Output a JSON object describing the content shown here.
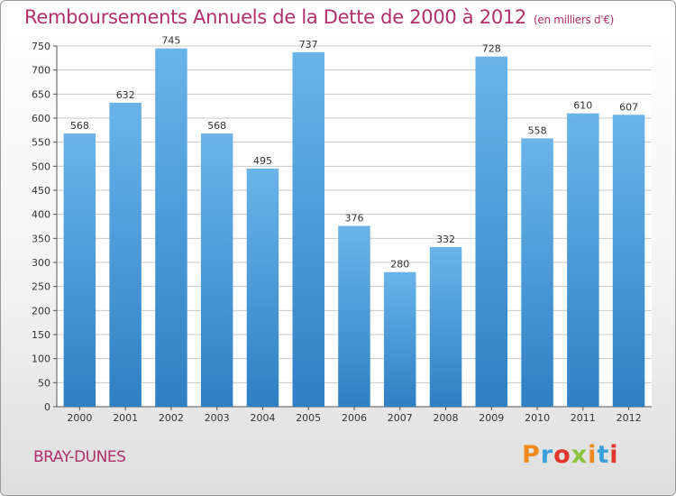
{
  "chart_data": {
    "type": "bar",
    "title": "Remboursements Annuels de la Dette de 2000 à 2012",
    "unit": "(en milliers d'€)",
    "categories": [
      "2000",
      "2001",
      "2002",
      "2003",
      "2004",
      "2005",
      "2006",
      "2007",
      "2008",
      "2009",
      "2010",
      "2011",
      "2012"
    ],
    "values": [
      568,
      632,
      745,
      568,
      495,
      737,
      376,
      280,
      332,
      728,
      558,
      610,
      607
    ],
    "ylim": [
      0,
      750
    ],
    "ytick_step": 50,
    "grid": true,
    "bar_color": "#4b9fdc",
    "bar_color_light": "#6ab4ea",
    "bar_color_dark": "#2f7fc3"
  },
  "footer": {
    "city": "BRAY-DUNES",
    "logo": [
      "P",
      "r",
      "o",
      "x",
      "i",
      "t",
      "i"
    ],
    "logo_colors": [
      "#f08a1c",
      "#3aa0dc",
      "#e0362c",
      "#8ac43a",
      "#f08a1c",
      "#3aa0dc",
      "#e0362c"
    ]
  }
}
